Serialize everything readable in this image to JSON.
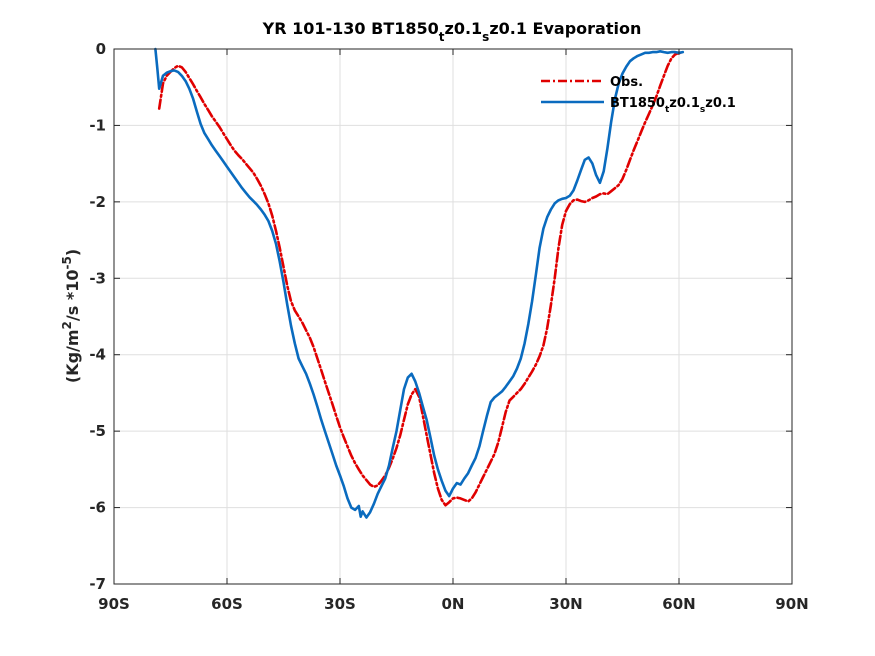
{
  "chart_data": {
    "type": "line",
    "title_parts": [
      {
        "text": "YR 101-130 BT1850",
        "sub": false
      },
      {
        "text": "t",
        "sub": true
      },
      {
        "text": "z0.1",
        "sub": false
      },
      {
        "text": "s",
        "sub": true
      },
      {
        "text": "z0.1 Evaporation",
        "sub": false
      }
    ],
    "ylabel_parts": [
      {
        "text": "(Kg/m",
        "sup": false
      },
      {
        "text": "2",
        "sup": true
      },
      {
        "text": "/s *10",
        "sup": false
      },
      {
        "text": "-5",
        "sup": true
      },
      {
        "text": ")",
        "sup": false
      }
    ],
    "xlim": [
      -90,
      90
    ],
    "ylim": [
      -7,
      0
    ],
    "x_ticks": [
      -90,
      -60,
      -30,
      0,
      30,
      60,
      90
    ],
    "x_tick_labels": [
      "90S",
      "60S",
      "30S",
      "0N",
      "30N",
      "60N",
      "90N"
    ],
    "y_ticks": [
      0,
      -1,
      -2,
      -3,
      -4,
      -5,
      -6,
      -7
    ],
    "y_tick_labels": [
      "0",
      "-1",
      "-2",
      "-3",
      "-4",
      "-5",
      "-6",
      "-7"
    ],
    "grid": true,
    "legend_position": "top-right",
    "series": [
      {
        "name_parts": [
          {
            "text": "Obs.",
            "sub": false
          }
        ],
        "color": "#e00000",
        "style": "dashdot",
        "points": [
          [
            -78,
            -0.78
          ],
          [
            -77,
            -0.45
          ],
          [
            -76,
            -0.35
          ],
          [
            -75,
            -0.3
          ],
          [
            -74,
            -0.25
          ],
          [
            -73,
            -0.22
          ],
          [
            -72,
            -0.24
          ],
          [
            -71,
            -0.3
          ],
          [
            -70,
            -0.38
          ],
          [
            -69,
            -0.46
          ],
          [
            -68,
            -0.55
          ],
          [
            -67,
            -0.63
          ],
          [
            -66,
            -0.72
          ],
          [
            -65,
            -0.8
          ],
          [
            -64,
            -0.88
          ],
          [
            -63,
            -0.95
          ],
          [
            -62,
            -1.02
          ],
          [
            -61,
            -1.1
          ],
          [
            -60,
            -1.18
          ],
          [
            -59,
            -1.26
          ],
          [
            -58,
            -1.33
          ],
          [
            -57,
            -1.39
          ],
          [
            -56,
            -1.44
          ],
          [
            -55,
            -1.5
          ],
          [
            -54,
            -1.56
          ],
          [
            -53,
            -1.62
          ],
          [
            -52,
            -1.7
          ],
          [
            -51,
            -1.79
          ],
          [
            -50,
            -1.9
          ],
          [
            -49,
            -2.02
          ],
          [
            -48,
            -2.18
          ],
          [
            -47,
            -2.38
          ],
          [
            -46,
            -2.6
          ],
          [
            -45,
            -2.85
          ],
          [
            -44,
            -3.1
          ],
          [
            -43,
            -3.3
          ],
          [
            -42,
            -3.42
          ],
          [
            -41,
            -3.5
          ],
          [
            -40,
            -3.58
          ],
          [
            -39,
            -3.68
          ],
          [
            -38,
            -3.78
          ],
          [
            -37,
            -3.9
          ],
          [
            -36,
            -4.05
          ],
          [
            -35,
            -4.2
          ],
          [
            -34,
            -4.35
          ],
          [
            -33,
            -4.5
          ],
          [
            -32,
            -4.65
          ],
          [
            -31,
            -4.8
          ],
          [
            -30,
            -4.95
          ],
          [
            -29,
            -5.08
          ],
          [
            -28,
            -5.2
          ],
          [
            -27,
            -5.32
          ],
          [
            -26,
            -5.42
          ],
          [
            -25,
            -5.5
          ],
          [
            -24,
            -5.58
          ],
          [
            -23,
            -5.64
          ],
          [
            -22,
            -5.7
          ],
          [
            -21,
            -5.73
          ],
          [
            -20,
            -5.71
          ],
          [
            -19,
            -5.65
          ],
          [
            -18,
            -5.58
          ],
          [
            -17,
            -5.48
          ],
          [
            -16,
            -5.36
          ],
          [
            -15,
            -5.22
          ],
          [
            -14,
            -5.05
          ],
          [
            -13,
            -4.85
          ],
          [
            -12,
            -4.65
          ],
          [
            -11,
            -4.52
          ],
          [
            -10,
            -4.45
          ],
          [
            -9,
            -4.55
          ],
          [
            -8,
            -4.8
          ],
          [
            -7,
            -5.05
          ],
          [
            -6,
            -5.3
          ],
          [
            -5,
            -5.55
          ],
          [
            -4,
            -5.75
          ],
          [
            -3,
            -5.9
          ],
          [
            -2,
            -5.97
          ],
          [
            -1,
            -5.93
          ],
          [
            0,
            -5.88
          ],
          [
            1,
            -5.87
          ],
          [
            2,
            -5.88
          ],
          [
            3,
            -5.9
          ],
          [
            4,
            -5.92
          ],
          [
            5,
            -5.88
          ],
          [
            6,
            -5.8
          ],
          [
            7,
            -5.7
          ],
          [
            8,
            -5.6
          ],
          [
            9,
            -5.5
          ],
          [
            10,
            -5.4
          ],
          [
            11,
            -5.3
          ],
          [
            12,
            -5.15
          ],
          [
            13,
            -4.95
          ],
          [
            14,
            -4.75
          ],
          [
            15,
            -4.6
          ],
          [
            16,
            -4.55
          ],
          [
            17,
            -4.5
          ],
          [
            18,
            -4.45
          ],
          [
            19,
            -4.38
          ],
          [
            20,
            -4.3
          ],
          [
            21,
            -4.22
          ],
          [
            22,
            -4.13
          ],
          [
            23,
            -4.02
          ],
          [
            24,
            -3.88
          ],
          [
            25,
            -3.65
          ],
          [
            26,
            -3.35
          ],
          [
            27,
            -3.0
          ],
          [
            28,
            -2.6
          ],
          [
            29,
            -2.3
          ],
          [
            30,
            -2.12
          ],
          [
            31,
            -2.03
          ],
          [
            32,
            -1.98
          ],
          [
            33,
            -1.97
          ],
          [
            34,
            -1.99
          ],
          [
            35,
            -2.0
          ],
          [
            36,
            -1.98
          ],
          [
            37,
            -1.95
          ],
          [
            38,
            -1.93
          ],
          [
            39,
            -1.9
          ],
          [
            40,
            -1.89
          ],
          [
            41,
            -1.9
          ],
          [
            42,
            -1.86
          ],
          [
            43,
            -1.82
          ],
          [
            44,
            -1.78
          ],
          [
            45,
            -1.7
          ],
          [
            46,
            -1.58
          ],
          [
            47,
            -1.45
          ],
          [
            48,
            -1.32
          ],
          [
            49,
            -1.2
          ],
          [
            50,
            -1.08
          ],
          [
            51,
            -0.96
          ],
          [
            52,
            -0.85
          ],
          [
            53,
            -0.74
          ],
          [
            54,
            -0.62
          ],
          [
            55,
            -0.48
          ],
          [
            56,
            -0.35
          ],
          [
            57,
            -0.22
          ],
          [
            58,
            -0.12
          ],
          [
            59,
            -0.07
          ],
          [
            60,
            -0.05
          ],
          [
            61,
            -0.05
          ]
        ]
      },
      {
        "name_parts": [
          {
            "text": "BT1850",
            "sub": false
          },
          {
            "text": "t",
            "sub": true
          },
          {
            "text": "z0.1",
            "sub": false
          },
          {
            "text": "s",
            "sub": true
          },
          {
            "text": "z0.1",
            "sub": false
          }
        ],
        "color": "#0a6bbf",
        "style": "solid",
        "points": [
          [
            -79,
            0.0
          ],
          [
            -78.5,
            -0.25
          ],
          [
            -78,
            -0.52
          ],
          [
            -77,
            -0.35
          ],
          [
            -76,
            -0.31
          ],
          [
            -75,
            -0.29
          ],
          [
            -74,
            -0.28
          ],
          [
            -73,
            -0.3
          ],
          [
            -72,
            -0.35
          ],
          [
            -71,
            -0.42
          ],
          [
            -70,
            -0.52
          ],
          [
            -69,
            -0.65
          ],
          [
            -68,
            -0.82
          ],
          [
            -67,
            -0.98
          ],
          [
            -66,
            -1.1
          ],
          [
            -65,
            -1.18
          ],
          [
            -64,
            -1.26
          ],
          [
            -63,
            -1.33
          ],
          [
            -62,
            -1.4
          ],
          [
            -61,
            -1.47
          ],
          [
            -60,
            -1.54
          ],
          [
            -59,
            -1.61
          ],
          [
            -58,
            -1.68
          ],
          [
            -57,
            -1.75
          ],
          [
            -56,
            -1.82
          ],
          [
            -55,
            -1.88
          ],
          [
            -54,
            -1.94
          ],
          [
            -53,
            -1.99
          ],
          [
            -52,
            -2.04
          ],
          [
            -51,
            -2.1
          ],
          [
            -50,
            -2.17
          ],
          [
            -49,
            -2.25
          ],
          [
            -48,
            -2.38
          ],
          [
            -47,
            -2.55
          ],
          [
            -46,
            -2.78
          ],
          [
            -45,
            -3.05
          ],
          [
            -44,
            -3.35
          ],
          [
            -43,
            -3.62
          ],
          [
            -42,
            -3.85
          ],
          [
            -41,
            -4.05
          ],
          [
            -40,
            -4.15
          ],
          [
            -39,
            -4.25
          ],
          [
            -38,
            -4.38
          ],
          [
            -37,
            -4.52
          ],
          [
            -36,
            -4.68
          ],
          [
            -35,
            -4.85
          ],
          [
            -34,
            -5.0
          ],
          [
            -33,
            -5.15
          ],
          [
            -32,
            -5.3
          ],
          [
            -31,
            -5.45
          ],
          [
            -30,
            -5.58
          ],
          [
            -29,
            -5.72
          ],
          [
            -28,
            -5.88
          ],
          [
            -27,
            -6.0
          ],
          [
            -26,
            -6.03
          ],
          [
            -25,
            -5.98
          ],
          [
            -24.5,
            -6.12
          ],
          [
            -24,
            -6.05
          ],
          [
            -23,
            -6.13
          ],
          [
            -22,
            -6.06
          ],
          [
            -21,
            -5.95
          ],
          [
            -20,
            -5.82
          ],
          [
            -19,
            -5.72
          ],
          [
            -18,
            -5.62
          ],
          [
            -17,
            -5.45
          ],
          [
            -16,
            -5.22
          ],
          [
            -15,
            -5.0
          ],
          [
            -14,
            -4.72
          ],
          [
            -13,
            -4.45
          ],
          [
            -12,
            -4.3
          ],
          [
            -11,
            -4.25
          ],
          [
            -10,
            -4.35
          ],
          [
            -9,
            -4.5
          ],
          [
            -8,
            -4.68
          ],
          [
            -7,
            -4.85
          ],
          [
            -6,
            -5.08
          ],
          [
            -5,
            -5.32
          ],
          [
            -4,
            -5.5
          ],
          [
            -3,
            -5.65
          ],
          [
            -2,
            -5.78
          ],
          [
            -1,
            -5.85
          ],
          [
            0,
            -5.75
          ],
          [
            1,
            -5.68
          ],
          [
            2,
            -5.7
          ],
          [
            3,
            -5.62
          ],
          [
            4,
            -5.55
          ],
          [
            5,
            -5.45
          ],
          [
            6,
            -5.35
          ],
          [
            7,
            -5.2
          ],
          [
            8,
            -5.0
          ],
          [
            9,
            -4.8
          ],
          [
            10,
            -4.62
          ],
          [
            11,
            -4.56
          ],
          [
            12,
            -4.52
          ],
          [
            13,
            -4.48
          ],
          [
            14,
            -4.42
          ],
          [
            15,
            -4.35
          ],
          [
            16,
            -4.28
          ],
          [
            17,
            -4.18
          ],
          [
            18,
            -4.05
          ],
          [
            19,
            -3.85
          ],
          [
            20,
            -3.6
          ],
          [
            21,
            -3.3
          ],
          [
            22,
            -2.95
          ],
          [
            23,
            -2.6
          ],
          [
            24,
            -2.35
          ],
          [
            25,
            -2.2
          ],
          [
            26,
            -2.1
          ],
          [
            27,
            -2.02
          ],
          [
            28,
            -1.98
          ],
          [
            29,
            -1.96
          ],
          [
            30,
            -1.95
          ],
          [
            31,
            -1.92
          ],
          [
            32,
            -1.85
          ],
          [
            33,
            -1.72
          ],
          [
            34,
            -1.58
          ],
          [
            35,
            -1.45
          ],
          [
            36,
            -1.42
          ],
          [
            37,
            -1.5
          ],
          [
            38,
            -1.65
          ],
          [
            39,
            -1.75
          ],
          [
            40,
            -1.6
          ],
          [
            41,
            -1.3
          ],
          [
            42,
            -0.95
          ],
          [
            43,
            -0.65
          ],
          [
            44,
            -0.45
          ],
          [
            45,
            -0.32
          ],
          [
            46,
            -0.23
          ],
          [
            47,
            -0.16
          ],
          [
            48,
            -0.12
          ],
          [
            49,
            -0.09
          ],
          [
            50,
            -0.07
          ],
          [
            51,
            -0.05
          ],
          [
            52,
            -0.05
          ],
          [
            53,
            -0.04
          ],
          [
            54,
            -0.04
          ],
          [
            55,
            -0.03
          ],
          [
            56,
            -0.04
          ],
          [
            57,
            -0.05
          ],
          [
            58,
            -0.04
          ],
          [
            59,
            -0.04
          ],
          [
            60,
            -0.05
          ],
          [
            61,
            -0.04
          ]
        ]
      }
    ]
  }
}
